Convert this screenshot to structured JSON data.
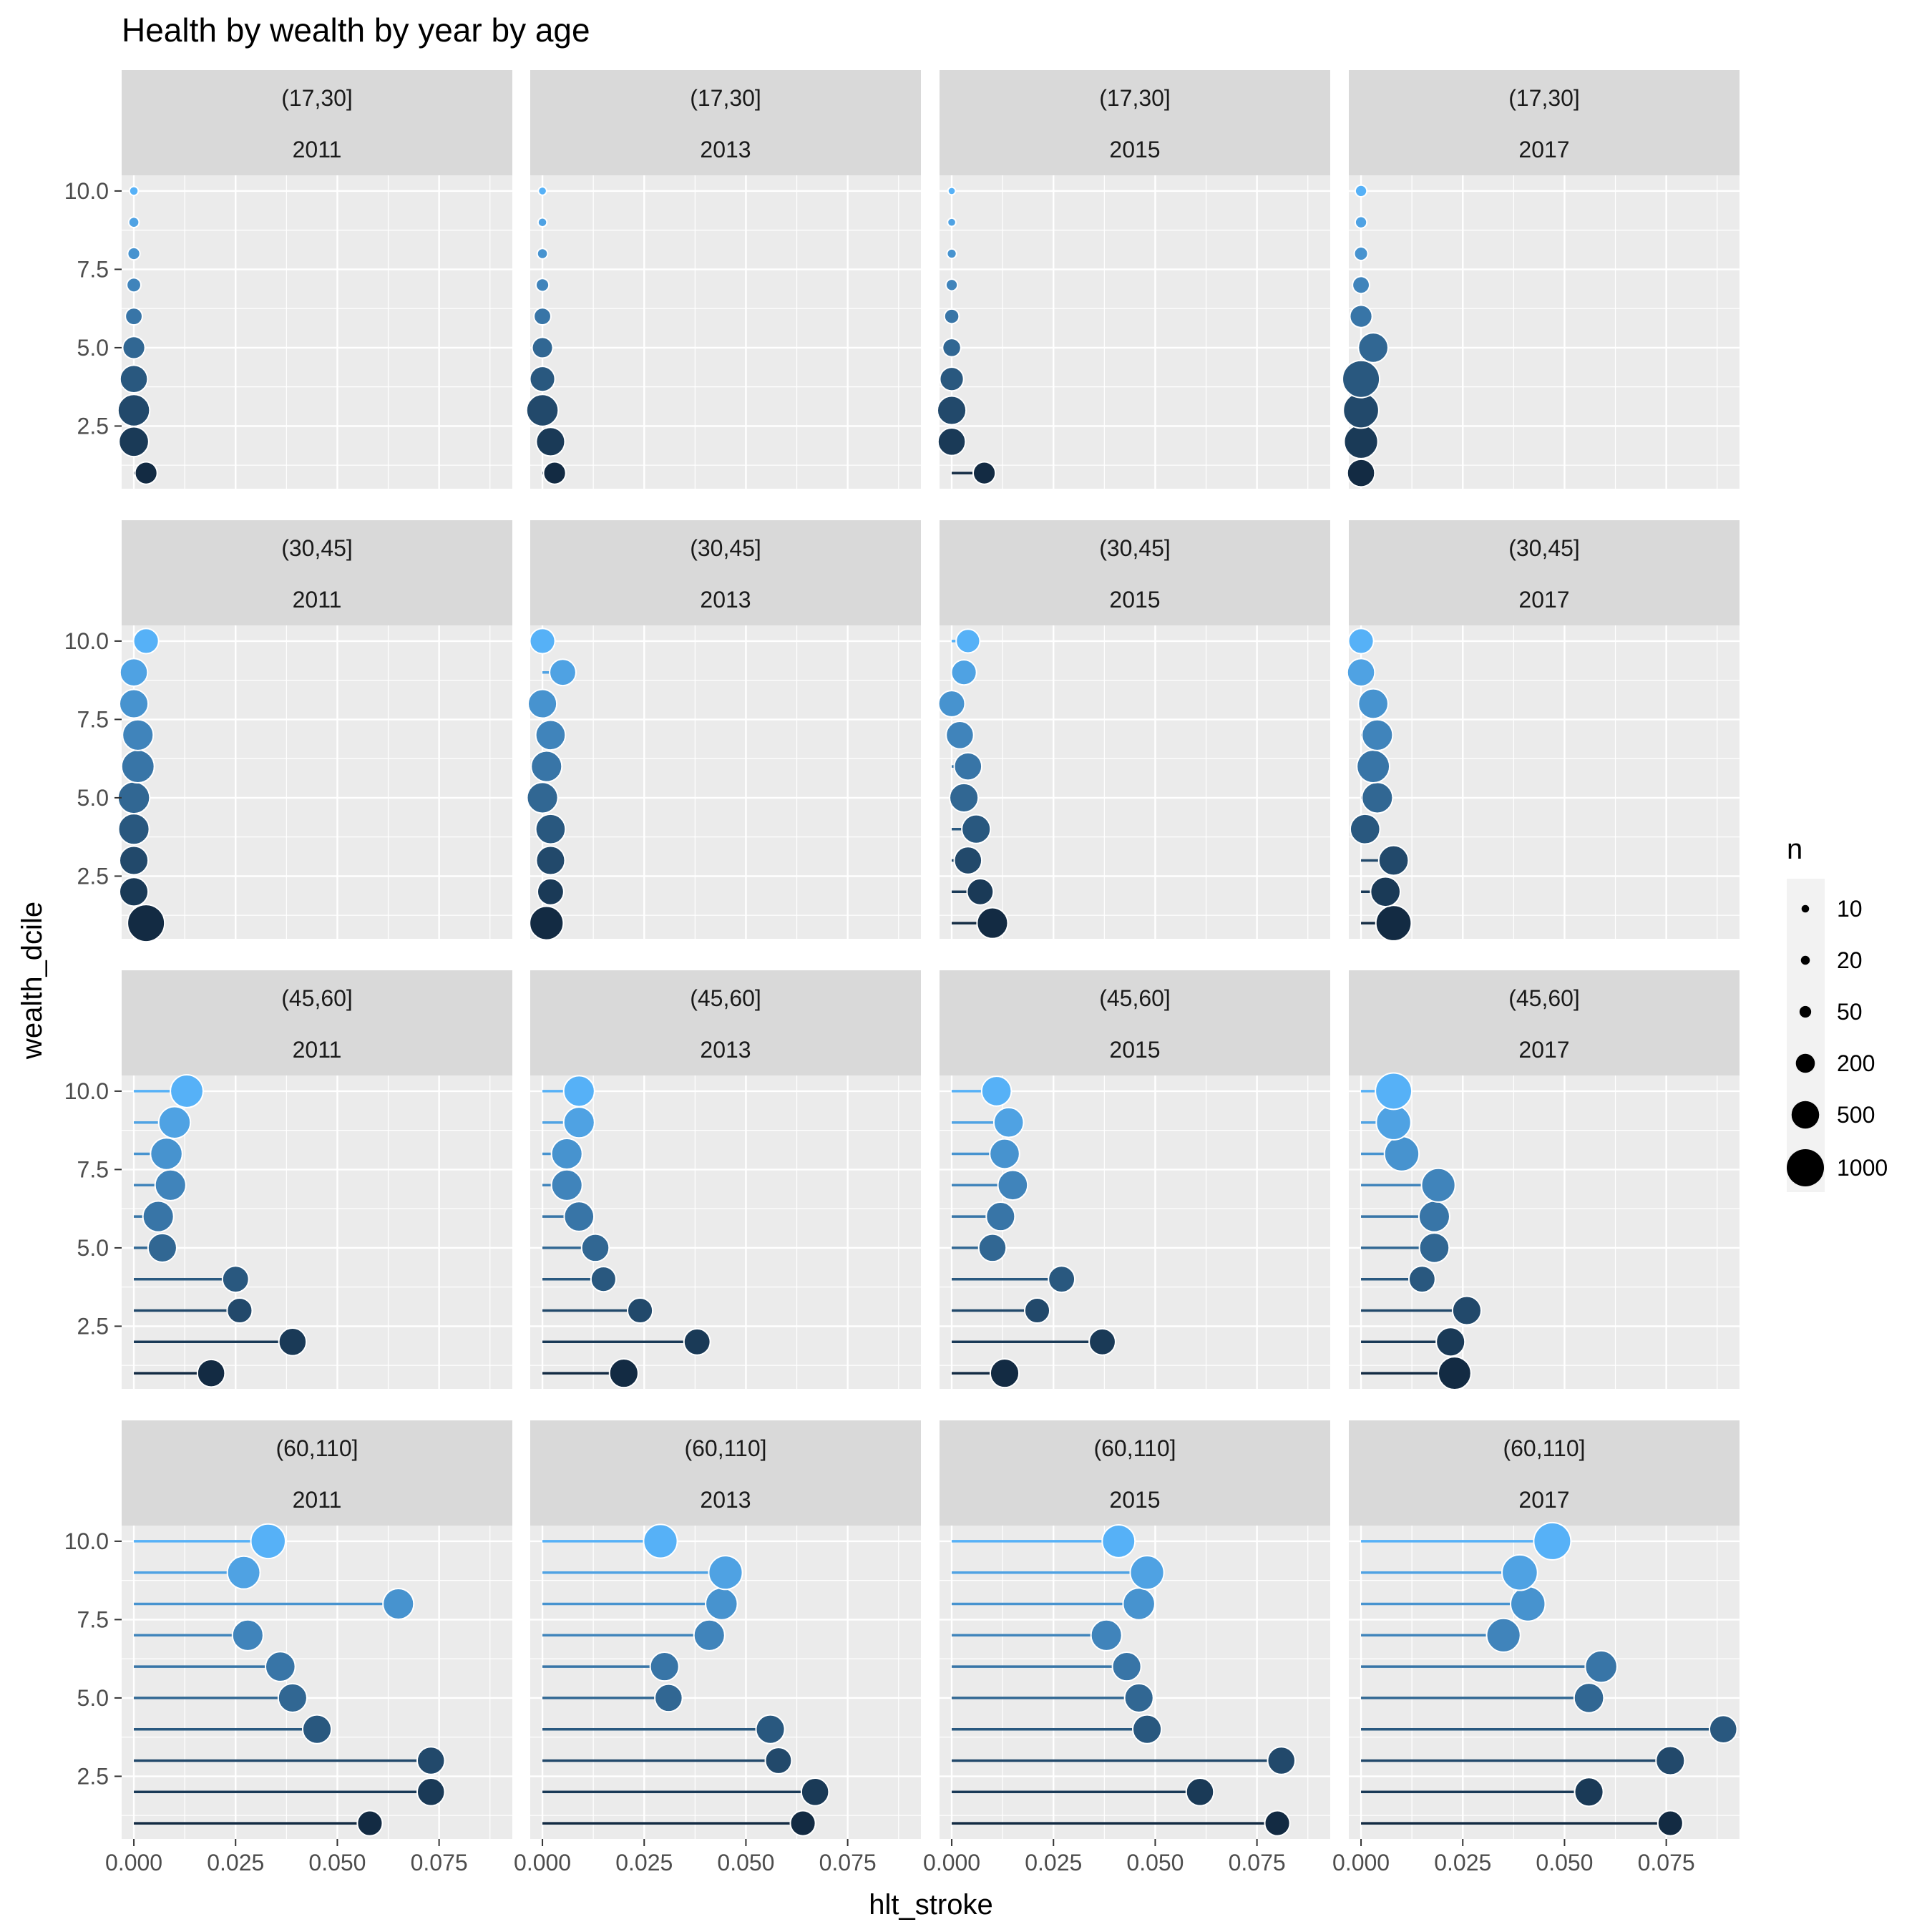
{
  "chart_data": {
    "type": "scatter",
    "subtype": "lollipop facet grid",
    "title": "Health by wealth by year by age",
    "xlabel": "hlt_stroke",
    "ylabel": "wealth_dcile",
    "xlim": [
      -0.003,
      0.093
    ],
    "ylim": [
      0.5,
      10.5
    ],
    "x_ticks": [
      0,
      0.025,
      0.05,
      0.075
    ],
    "x_tick_labels": [
      "0.000",
      "0.025",
      "0.050",
      "0.075"
    ],
    "y_ticks": [
      2.5,
      5.0,
      7.5,
      10.0
    ],
    "y_tick_labels": [
      "2.5",
      "5.0",
      "7.5",
      "10.0"
    ],
    "grid": true,
    "legend": {
      "title": "n",
      "placement": "right",
      "entries": [
        {
          "label": "10",
          "n": 10
        },
        {
          "label": "20",
          "n": 20
        },
        {
          "label": "50",
          "n": 50
        },
        {
          "label": "200",
          "n": 200
        },
        {
          "label": "500",
          "n": 500
        },
        {
          "label": "1000",
          "n": 1000
        }
      ]
    },
    "color_by": "wealth_dcile",
    "color_low": "#132B43",
    "color_high": "#56B1F7",
    "rows": [
      "(17,30]",
      "(30,45]",
      "(45,60]",
      "(60,110]"
    ],
    "cols": [
      "2011",
      "2013",
      "2015",
      "2017"
    ],
    "panels": [
      {
        "age": "(17,30]",
        "year": "2011",
        "points": [
          {
            "d": 1,
            "x": 0.003,
            "n": 300
          },
          {
            "d": 2,
            "x": 0.0,
            "n": 600
          },
          {
            "d": 3,
            "x": 0.0,
            "n": 700
          },
          {
            "d": 4,
            "x": 0.0,
            "n": 500
          },
          {
            "d": 5,
            "x": 0.0,
            "n": 300
          },
          {
            "d": 6,
            "x": 0.0,
            "n": 150
          },
          {
            "d": 7,
            "x": 0.0,
            "n": 90
          },
          {
            "d": 8,
            "x": 0.0,
            "n": 60
          },
          {
            "d": 9,
            "x": 0.0,
            "n": 35
          },
          {
            "d": 10,
            "x": 0.0,
            "n": 20
          }
        ]
      },
      {
        "age": "(17,30]",
        "year": "2013",
        "points": [
          {
            "d": 1,
            "x": 0.003,
            "n": 300
          },
          {
            "d": 2,
            "x": 0.002,
            "n": 550
          },
          {
            "d": 3,
            "x": 0.0,
            "n": 700
          },
          {
            "d": 4,
            "x": 0.0,
            "n": 400
          },
          {
            "d": 5,
            "x": 0.0,
            "n": 250
          },
          {
            "d": 6,
            "x": 0.0,
            "n": 150
          },
          {
            "d": 7,
            "x": 0.0,
            "n": 70
          },
          {
            "d": 8,
            "x": 0.0,
            "n": 35
          },
          {
            "d": 9,
            "x": 0.0,
            "n": 20
          },
          {
            "d": 10,
            "x": 0.0,
            "n": 15
          }
        ]
      },
      {
        "age": "(17,30]",
        "year": "2015",
        "points": [
          {
            "d": 1,
            "x": 0.008,
            "n": 300
          },
          {
            "d": 2,
            "x": 0.0,
            "n": 500
          },
          {
            "d": 3,
            "x": 0.0,
            "n": 550
          },
          {
            "d": 4,
            "x": 0.0,
            "n": 350
          },
          {
            "d": 5,
            "x": 0.0,
            "n": 180
          },
          {
            "d": 6,
            "x": 0.0,
            "n": 100
          },
          {
            "d": 7,
            "x": 0.0,
            "n": 50
          },
          {
            "d": 8,
            "x": 0.0,
            "n": 25
          },
          {
            "d": 9,
            "x": 0.0,
            "n": 15
          },
          {
            "d": 10,
            "x": 0.0,
            "n": 10
          }
        ]
      },
      {
        "age": "(17,30]",
        "year": "2017",
        "points": [
          {
            "d": 1,
            "x": 0.0,
            "n": 500
          },
          {
            "d": 2,
            "x": 0.0,
            "n": 800
          },
          {
            "d": 3,
            "x": 0.0,
            "n": 900
          },
          {
            "d": 4,
            "x": 0.0,
            "n": 1000
          },
          {
            "d": 5,
            "x": 0.003,
            "n": 600
          },
          {
            "d": 6,
            "x": 0.0,
            "n": 300
          },
          {
            "d": 7,
            "x": 0.0,
            "n": 150
          },
          {
            "d": 8,
            "x": 0.0,
            "n": 80
          },
          {
            "d": 9,
            "x": 0.0,
            "n": 50
          },
          {
            "d": 10,
            "x": 0.0,
            "n": 50
          }
        ]
      },
      {
        "age": "(30,45]",
        "year": "2011",
        "points": [
          {
            "d": 1,
            "x": 0.003,
            "n": 1000
          },
          {
            "d": 2,
            "x": 0.0,
            "n": 550
          },
          {
            "d": 3,
            "x": 0.0,
            "n": 550
          },
          {
            "d": 4,
            "x": 0.0,
            "n": 650
          },
          {
            "d": 5,
            "x": 0.0,
            "n": 700
          },
          {
            "d": 6,
            "x": 0.001,
            "n": 750
          },
          {
            "d": 7,
            "x": 0.001,
            "n": 650
          },
          {
            "d": 8,
            "x": 0.0,
            "n": 550
          },
          {
            "d": 9,
            "x": 0.0,
            "n": 500
          },
          {
            "d": 10,
            "x": 0.003,
            "n": 400
          }
        ]
      },
      {
        "age": "(30,45]",
        "year": "2013",
        "points": [
          {
            "d": 1,
            "x": 0.001,
            "n": 800
          },
          {
            "d": 2,
            "x": 0.002,
            "n": 450
          },
          {
            "d": 3,
            "x": 0.002,
            "n": 550
          },
          {
            "d": 4,
            "x": 0.002,
            "n": 600
          },
          {
            "d": 5,
            "x": 0.0,
            "n": 650
          },
          {
            "d": 6,
            "x": 0.001,
            "n": 650
          },
          {
            "d": 7,
            "x": 0.002,
            "n": 600
          },
          {
            "d": 8,
            "x": 0.0,
            "n": 550
          },
          {
            "d": 9,
            "x": 0.005,
            "n": 450
          },
          {
            "d": 10,
            "x": 0.0,
            "n": 400
          }
        ]
      },
      {
        "age": "(30,45]",
        "year": "2015",
        "points": [
          {
            "d": 1,
            "x": 0.01,
            "n": 650
          },
          {
            "d": 2,
            "x": 0.007,
            "n": 450
          },
          {
            "d": 3,
            "x": 0.004,
            "n": 500
          },
          {
            "d": 4,
            "x": 0.006,
            "n": 550
          },
          {
            "d": 5,
            "x": 0.003,
            "n": 550
          },
          {
            "d": 6,
            "x": 0.004,
            "n": 500
          },
          {
            "d": 7,
            "x": 0.002,
            "n": 500
          },
          {
            "d": 8,
            "x": 0.0,
            "n": 450
          },
          {
            "d": 9,
            "x": 0.003,
            "n": 400
          },
          {
            "d": 10,
            "x": 0.004,
            "n": 350
          }
        ]
      },
      {
        "age": "(30,45]",
        "year": "2017",
        "points": [
          {
            "d": 1,
            "x": 0.008,
            "n": 900
          },
          {
            "d": 2,
            "x": 0.006,
            "n": 600
          },
          {
            "d": 3,
            "x": 0.008,
            "n": 600
          },
          {
            "d": 4,
            "x": 0.001,
            "n": 600
          },
          {
            "d": 5,
            "x": 0.004,
            "n": 650
          },
          {
            "d": 6,
            "x": 0.003,
            "n": 750
          },
          {
            "d": 7,
            "x": 0.004,
            "n": 650
          },
          {
            "d": 8,
            "x": 0.003,
            "n": 600
          },
          {
            "d": 9,
            "x": 0.0,
            "n": 500
          },
          {
            "d": 10,
            "x": 0.0,
            "n": 400
          }
        ]
      },
      {
        "age": "(45,60]",
        "year": "2011",
        "points": [
          {
            "d": 1,
            "x": 0.019,
            "n": 500
          },
          {
            "d": 2,
            "x": 0.039,
            "n": 500
          },
          {
            "d": 3,
            "x": 0.026,
            "n": 400
          },
          {
            "d": 4,
            "x": 0.025,
            "n": 450
          },
          {
            "d": 5,
            "x": 0.007,
            "n": 550
          },
          {
            "d": 6,
            "x": 0.006,
            "n": 650
          },
          {
            "d": 7,
            "x": 0.009,
            "n": 650
          },
          {
            "d": 8,
            "x": 0.008,
            "n": 700
          },
          {
            "d": 9,
            "x": 0.01,
            "n": 700
          },
          {
            "d": 10,
            "x": 0.013,
            "n": 750
          }
        ]
      },
      {
        "age": "(45,60]",
        "year": "2013",
        "points": [
          {
            "d": 1,
            "x": 0.02,
            "n": 550
          },
          {
            "d": 2,
            "x": 0.038,
            "n": 450
          },
          {
            "d": 3,
            "x": 0.024,
            "n": 400
          },
          {
            "d": 4,
            "x": 0.015,
            "n": 400
          },
          {
            "d": 5,
            "x": 0.013,
            "n": 500
          },
          {
            "d": 6,
            "x": 0.009,
            "n": 600
          },
          {
            "d": 7,
            "x": 0.006,
            "n": 650
          },
          {
            "d": 8,
            "x": 0.006,
            "n": 650
          },
          {
            "d": 9,
            "x": 0.009,
            "n": 650
          },
          {
            "d": 10,
            "x": 0.009,
            "n": 650
          }
        ]
      },
      {
        "age": "(45,60]",
        "year": "2015",
        "points": [
          {
            "d": 1,
            "x": 0.013,
            "n": 550
          },
          {
            "d": 2,
            "x": 0.037,
            "n": 450
          },
          {
            "d": 3,
            "x": 0.021,
            "n": 400
          },
          {
            "d": 4,
            "x": 0.027,
            "n": 450
          },
          {
            "d": 5,
            "x": 0.01,
            "n": 500
          },
          {
            "d": 6,
            "x": 0.012,
            "n": 550
          },
          {
            "d": 7,
            "x": 0.015,
            "n": 600
          },
          {
            "d": 8,
            "x": 0.013,
            "n": 600
          },
          {
            "d": 9,
            "x": 0.014,
            "n": 600
          },
          {
            "d": 10,
            "x": 0.011,
            "n": 600
          }
        ]
      },
      {
        "age": "(45,60]",
        "year": "2017",
        "points": [
          {
            "d": 1,
            "x": 0.023,
            "n": 750
          },
          {
            "d": 2,
            "x": 0.022,
            "n": 550
          },
          {
            "d": 3,
            "x": 0.026,
            "n": 550
          },
          {
            "d": 4,
            "x": 0.015,
            "n": 450
          },
          {
            "d": 5,
            "x": 0.018,
            "n": 600
          },
          {
            "d": 6,
            "x": 0.018,
            "n": 650
          },
          {
            "d": 7,
            "x": 0.019,
            "n": 800
          },
          {
            "d": 8,
            "x": 0.01,
            "n": 850
          },
          {
            "d": 9,
            "x": 0.008,
            "n": 850
          },
          {
            "d": 10,
            "x": 0.008,
            "n": 950
          }
        ]
      },
      {
        "age": "(60,110]",
        "year": "2011",
        "points": [
          {
            "d": 1,
            "x": 0.058,
            "n": 400
          },
          {
            "d": 2,
            "x": 0.073,
            "n": 500
          },
          {
            "d": 3,
            "x": 0.073,
            "n": 500
          },
          {
            "d": 4,
            "x": 0.045,
            "n": 550
          },
          {
            "d": 5,
            "x": 0.039,
            "n": 550
          },
          {
            "d": 6,
            "x": 0.036,
            "n": 600
          },
          {
            "d": 7,
            "x": 0.028,
            "n": 650
          },
          {
            "d": 8,
            "x": 0.065,
            "n": 650
          },
          {
            "d": 9,
            "x": 0.027,
            "n": 750
          },
          {
            "d": 10,
            "x": 0.033,
            "n": 850
          }
        ]
      },
      {
        "age": "(60,110]",
        "year": "2013",
        "points": [
          {
            "d": 1,
            "x": 0.064,
            "n": 400
          },
          {
            "d": 2,
            "x": 0.067,
            "n": 500
          },
          {
            "d": 3,
            "x": 0.058,
            "n": 450
          },
          {
            "d": 4,
            "x": 0.056,
            "n": 550
          },
          {
            "d": 5,
            "x": 0.031,
            "n": 500
          },
          {
            "d": 6,
            "x": 0.03,
            "n": 550
          },
          {
            "d": 7,
            "x": 0.041,
            "n": 650
          },
          {
            "d": 8,
            "x": 0.044,
            "n": 700
          },
          {
            "d": 9,
            "x": 0.045,
            "n": 800
          },
          {
            "d": 10,
            "x": 0.029,
            "n": 800
          }
        ]
      },
      {
        "age": "(60,110]",
        "year": "2015",
        "points": [
          {
            "d": 1,
            "x": 0.08,
            "n": 400
          },
          {
            "d": 2,
            "x": 0.061,
            "n": 500
          },
          {
            "d": 3,
            "x": 0.081,
            "n": 500
          },
          {
            "d": 4,
            "x": 0.048,
            "n": 550
          },
          {
            "d": 5,
            "x": 0.046,
            "n": 550
          },
          {
            "d": 6,
            "x": 0.043,
            "n": 550
          },
          {
            "d": 7,
            "x": 0.038,
            "n": 650
          },
          {
            "d": 8,
            "x": 0.046,
            "n": 700
          },
          {
            "d": 9,
            "x": 0.048,
            "n": 800
          },
          {
            "d": 10,
            "x": 0.041,
            "n": 750
          }
        ]
      },
      {
        "age": "(60,110]",
        "year": "2017",
        "points": [
          {
            "d": 1,
            "x": 0.076,
            "n": 400
          },
          {
            "d": 2,
            "x": 0.056,
            "n": 550
          },
          {
            "d": 3,
            "x": 0.076,
            "n": 550
          },
          {
            "d": 4,
            "x": 0.089,
            "n": 500
          },
          {
            "d": 5,
            "x": 0.056,
            "n": 600
          },
          {
            "d": 6,
            "x": 0.059,
            "n": 700
          },
          {
            "d": 7,
            "x": 0.035,
            "n": 800
          },
          {
            "d": 8,
            "x": 0.041,
            "n": 850
          },
          {
            "d": 9,
            "x": 0.039,
            "n": 900
          },
          {
            "d": 10,
            "x": 0.047,
            "n": 1000
          }
        ]
      }
    ]
  }
}
